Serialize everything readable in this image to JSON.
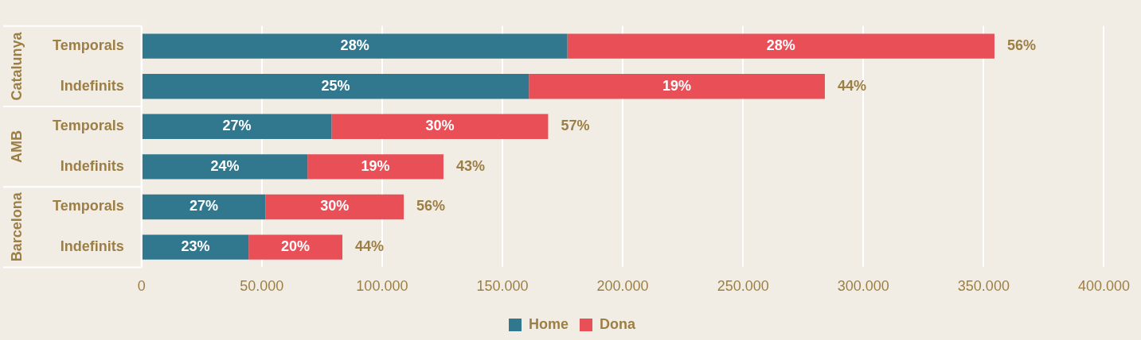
{
  "chart_data": {
    "type": "bar",
    "orientation": "horizontal",
    "stacked": true,
    "categories": [
      "Temporals",
      "Indefinits",
      "Temporals",
      "Indefinits",
      "Temporals",
      "Indefinits"
    ],
    "series": [
      {
        "name": "Home",
        "color": "#31788f",
        "values": [
          177000,
          161000,
          79000,
          69000,
          51500,
          44500
        ]
      },
      {
        "name": "Dona",
        "color": "#e94f57",
        "values": [
          177500,
          123000,
          90000,
          56500,
          57500,
          39000
        ]
      }
    ],
    "annotations": [
      "Catalunya",
      "AMB",
      "Barcelona",
      "28%",
      "28%",
      "56%",
      "25%",
      "19%",
      "44%",
      "27%",
      "30%",
      "57%",
      "24%",
      "19%",
      "43%",
      "27%",
      "30%",
      "56%",
      "23%",
      "20%",
      "44%"
    ],
    "xlim": [
      0,
      400000
    ],
    "xticks": [
      {
        "value": 0,
        "label": "0"
      },
      {
        "value": 50000,
        "label": "50.000"
      },
      {
        "value": 100000,
        "label": "100.000"
      },
      {
        "value": 150000,
        "label": "150.000"
      },
      {
        "value": 200000,
        "label": "200.000"
      },
      {
        "value": 250000,
        "label": "250.000"
      },
      {
        "value": 300000,
        "label": "300.000"
      },
      {
        "value": 350000,
        "label": "350.000"
      },
      {
        "value": 400000,
        "label": "400.000"
      }
    ],
    "grid": "x",
    "legend": "bottom"
  }
}
